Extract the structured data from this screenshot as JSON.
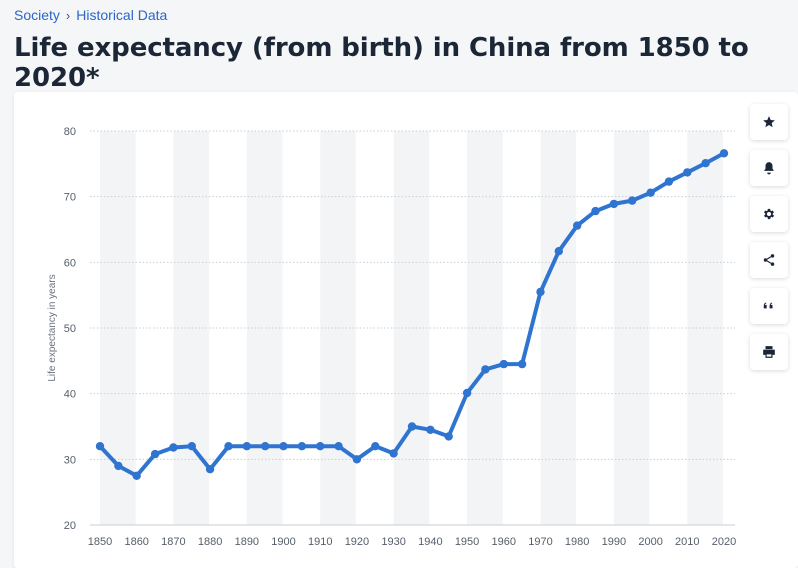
{
  "breadcrumb": {
    "items": [
      "Society",
      "Historical Data"
    ],
    "separator": "›"
  },
  "page": {
    "title": "Life expectancy (from birth) in China from 1850 to 2020*"
  },
  "toolbar": {
    "buttons": [
      {
        "icon": "star-icon"
      },
      {
        "icon": "bell-icon"
      },
      {
        "icon": "gear-icon"
      },
      {
        "icon": "share-icon"
      },
      {
        "icon": "quote-icon"
      },
      {
        "icon": "print-icon"
      }
    ]
  },
  "chart_data": {
    "type": "line",
    "title": "",
    "xlabel": "",
    "ylabel": "Life expectancy in years",
    "ylim": [
      20,
      80
    ],
    "yticks": [
      20,
      30,
      40,
      50,
      60,
      70,
      80
    ],
    "xticks": [
      1850,
      1860,
      1870,
      1880,
      1890,
      1900,
      1910,
      1920,
      1930,
      1940,
      1950,
      1960,
      1970,
      1980,
      1990,
      2000,
      2010,
      2020
    ],
    "grid": true,
    "legend": "none",
    "line_color": "#2f74d0",
    "band_color": "#f3f4f6",
    "series": [
      {
        "x": [
          1850,
          1855,
          1860,
          1865,
          1870,
          1875,
          1880,
          1885,
          1890,
          1895,
          1900,
          1905,
          1910,
          1915,
          1920,
          1925,
          1930,
          1935,
          1940,
          1945,
          1950,
          1955,
          1960,
          1965,
          1970,
          1975,
          1980,
          1985,
          1990,
          1995,
          2000,
          2005,
          2010,
          2015,
          2020
        ],
        "values": [
          32,
          29,
          27.5,
          30.8,
          31.8,
          32,
          28.5,
          32,
          32,
          32,
          32,
          32,
          32,
          32,
          30,
          32,
          30.9,
          35,
          34.5,
          33.5,
          40.1,
          43.7,
          44.5,
          44.5,
          55.5,
          61.7,
          65.6,
          67.8,
          68.9,
          69.4,
          70.6,
          72.3,
          73.7,
          75.1,
          76.6
        ]
      }
    ]
  }
}
